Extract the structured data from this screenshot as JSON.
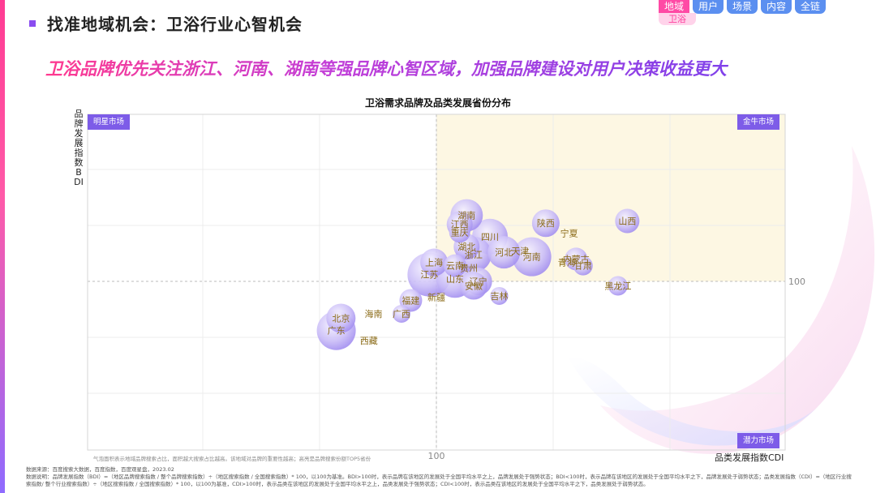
{
  "header": {
    "title": "找准地域机会：卫浴行业心智机会"
  },
  "nav": {
    "tabs": [
      {
        "label": "地域",
        "active": true
      },
      {
        "label": "用户",
        "active": false
      },
      {
        "label": "场景",
        "active": false
      },
      {
        "label": "内容",
        "active": false
      },
      {
        "label": "全链",
        "active": false
      }
    ],
    "subtab": "卫浴"
  },
  "headline": "卫浴品牌优先关注浙江、河南、湖南等强品牌心智区域，加强品牌建设对用户决策收益更大",
  "colors": {
    "bubble": "#c9bcf7",
    "bubble_edge": "#9d88ef",
    "label": "#8a6a16",
    "quad_bg": "#7d5ce8",
    "gold_zone": "#fdf7e3"
  },
  "chart_data": {
    "type": "scatter",
    "title": "卫浴需求品牌及品类发展省份分布",
    "xlabel": "品类发展指数CDI",
    "ylabel": "品牌发展指数BDI",
    "x_ref": 100,
    "y_ref": 100,
    "x_tick_labels": [
      "100"
    ],
    "y_tick_labels": [
      "100"
    ],
    "quadrants": {
      "top_left": "明星市场",
      "top_right": "金牛市场",
      "bottom_right": "潜力市场"
    },
    "note": "气泡面积表示地域品牌搜索占比，面积越大搜索占比越高。该地域对品牌的重要性越高；高亮是品牌搜索份额TOP5省份",
    "points": [
      {
        "name": "湖南",
        "cdi": 113,
        "bdi": 159,
        "size": 20
      },
      {
        "name": "江西",
        "cdi": 110,
        "bdi": 151,
        "size": 16
      },
      {
        "name": "陕西",
        "cdi": 147,
        "bdi": 152,
        "size": 17
      },
      {
        "name": "山西",
        "cdi": 182,
        "bdi": 154,
        "size": 15
      },
      {
        "name": "重庆",
        "cdi": 110,
        "bdi": 144,
        "size": 13
      },
      {
        "name": "宁夏",
        "cdi": 157,
        "bdi": 143,
        "size": 0
      },
      {
        "name": "四川",
        "cdi": 123,
        "bdi": 140,
        "size": 22
      },
      {
        "name": "湖北",
        "cdi": 113,
        "bdi": 131,
        "size": 16
      },
      {
        "name": "河北",
        "cdi": 129,
        "bdi": 126,
        "size": 20
      },
      {
        "name": "天津",
        "cdi": 136,
        "bdi": 127,
        "size": 0
      },
      {
        "name": "浙江",
        "cdi": 116,
        "bdi": 124,
        "size": 22
      },
      {
        "name": "河南",
        "cdi": 141,
        "bdi": 122,
        "size": 24
      },
      {
        "name": "内蒙古",
        "cdi": 160,
        "bdi": 120,
        "size": 14
      },
      {
        "name": "青海",
        "cdi": 156,
        "bdi": 117,
        "size": 0
      },
      {
        "name": "甘肃",
        "cdi": 163,
        "bdi": 114,
        "size": 12
      },
      {
        "name": "上海",
        "cdi": 99,
        "bdi": 117,
        "size": 17
      },
      {
        "name": "云南",
        "cdi": 108,
        "bdi": 114,
        "size": 14
      },
      {
        "name": "贵州",
        "cdi": 114,
        "bdi": 112,
        "size": 0
      },
      {
        "name": "江苏",
        "cdi": 97,
        "bdi": 106,
        "size": 27
      },
      {
        "name": "山东",
        "cdi": 108,
        "bdi": 102,
        "size": 23
      },
      {
        "name": "辽宁",
        "cdi": 118,
        "bdi": 100,
        "size": 17
      },
      {
        "name": "安徽",
        "cdi": 116,
        "bdi": 96,
        "size": 17
      },
      {
        "name": "黑龙江",
        "cdi": 178,
        "bdi": 96,
        "size": 12
      },
      {
        "name": "吉林",
        "cdi": 127,
        "bdi": 87,
        "size": 11
      },
      {
        "name": "新疆",
        "cdi": 100,
        "bdi": 86,
        "size": 0
      },
      {
        "name": "福建",
        "cdi": 89,
        "bdi": 83,
        "size": 14
      },
      {
        "name": "海南",
        "cdi": 73,
        "bdi": 71,
        "size": 0
      },
      {
        "name": "广西",
        "cdi": 85,
        "bdi": 71,
        "size": 11
      },
      {
        "name": "北京",
        "cdi": 59,
        "bdi": 67,
        "size": 18
      },
      {
        "name": "广东",
        "cdi": 57,
        "bdi": 56,
        "size": 24
      },
      {
        "name": "西藏",
        "cdi": 71,
        "bdi": 47,
        "size": 0
      }
    ]
  },
  "footer": {
    "source": "数据来源：百度搜索大数据，百度指数，百度观星盘，2023.02",
    "explanation": "数据说明：品牌发展指数（BDI）=（地区品牌搜索指数 / 整个品牌搜索指数）÷（地区搜索指数 / 全国搜索指数）* 100，以100为基准。BDI>100时，表示品牌在该地区的发展处于全国平均水平之上，品牌发展处于强势状态；BDI<100时，表示品牌在该地区的发展处于全国平均水平之下，品牌发展处于弱势状态；品类发展指数（CDI）=（地区行业搜索指数/ 整个行业搜索指数）÷（地区搜索指数 / 全国搜索指数）* 100，以100为基准，CDI>100时，表示品类在该地区的发展处于全国平均水平之上，品类发展处于强势状态；CDI<100时，表示品类在该地区的发展处于全国平均水平之下，品类发展处于弱势状态。"
  }
}
